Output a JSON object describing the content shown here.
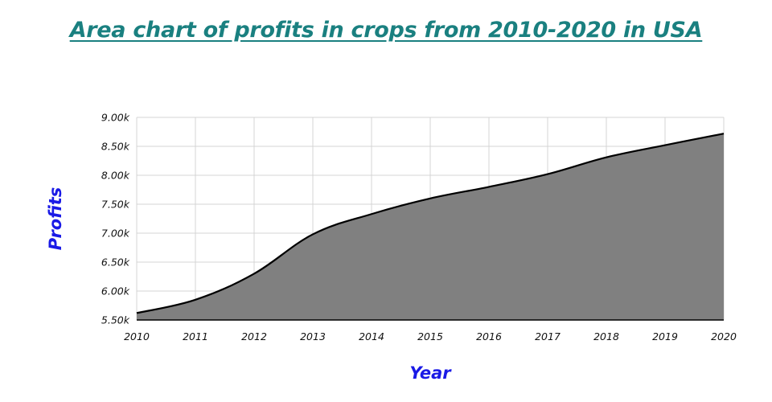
{
  "colors": {
    "title": "#1a8080",
    "axis_title": "#1a1ae6",
    "area_fill": "#808080",
    "line": "#000000",
    "grid": "#d4d4d4"
  },
  "chart_data": {
    "type": "area",
    "title": "Area chart of profits in crops from 2010-2020 in USA",
    "xlabel": "Year",
    "ylabel": "Profits",
    "x": [
      2010,
      2011,
      2012,
      2013,
      2014,
      2015,
      2016,
      2017,
      2018,
      2019,
      2020
    ],
    "values": [
      5620,
      5850,
      6300,
      6980,
      7330,
      7600,
      7800,
      8020,
      8310,
      8520,
      8720
    ],
    "ylim": [
      5500,
      9000
    ],
    "yticks": [
      5500,
      6000,
      6500,
      7000,
      7500,
      8000,
      8500,
      9000
    ],
    "ytick_labels": [
      "5.50k",
      "6.00k",
      "6.50k",
      "7.00k",
      "7.50k",
      "8.00k",
      "8.50k",
      "9.00k"
    ],
    "xtick_labels": [
      "2010",
      "2011",
      "2012",
      "2013",
      "2014",
      "2015",
      "2016",
      "2017",
      "2018",
      "2019",
      "2020"
    ],
    "grid": true,
    "legend": "none"
  }
}
